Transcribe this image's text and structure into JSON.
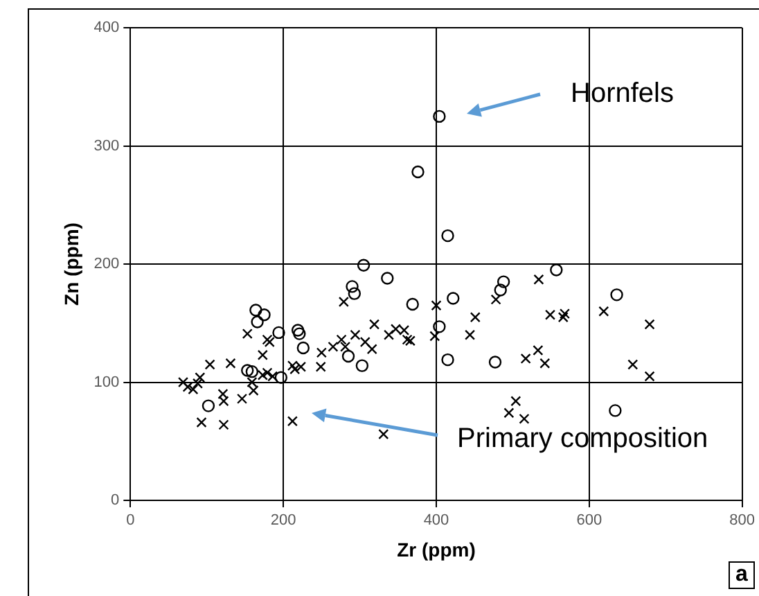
{
  "chart_data": {
    "type": "scatter",
    "xlabel": "Zr (ppm)",
    "ylabel": "Zn (ppm)",
    "xlim": [
      0,
      800
    ],
    "xticks": [
      0,
      200,
      400,
      600,
      800
    ],
    "ylim": [
      0,
      400
    ],
    "yticks": [
      0,
      100,
      200,
      300,
      400
    ],
    "grid": true,
    "legend": false,
    "series": [
      {
        "type": "scatter",
        "marker": "circle",
        "color": "#000000",
        "x": [
          404,
          376,
          415,
          305,
          336,
          290,
          293,
          369,
          422,
          488,
          484,
          557,
          404,
          285,
          303,
          415,
          477,
          636,
          634,
          164,
          175,
          166,
          194,
          219,
          221,
          226,
          153,
          159,
          197,
          102
        ],
        "values": [
          325,
          278,
          224,
          199,
          188,
          181,
          175,
          166,
          171,
          185,
          178,
          195,
          147,
          122,
          114,
          119,
          117,
          174,
          76,
          161,
          157,
          151,
          142,
          144,
          141,
          129,
          110,
          109,
          104,
          80
        ]
      },
      {
        "type": "scatter",
        "marker": "cross",
        "color": "#000000",
        "x": [
          69,
          75,
          82,
          88,
          91,
          104,
          93,
          122,
          121,
          122,
          146,
          131,
          153,
          161,
          159,
          173,
          179,
          182,
          173,
          179,
          186,
          212,
          215,
          223,
          249,
          250,
          265,
          276,
          281,
          279,
          212,
          294,
          307,
          316,
          319,
          338,
          347,
          358,
          362,
          366,
          398,
          400,
          444,
          451,
          478,
          534,
          549,
          566,
          568,
          517,
          533,
          542,
          495,
          504,
          515,
          331,
          619,
          679,
          657,
          679
        ],
        "values": [
          100,
          96,
          94,
          99,
          104,
          115,
          66,
          64,
          90,
          84,
          86,
          116,
          141,
          93,
          100,
          123,
          136,
          134,
          106,
          108,
          105,
          114,
          111,
          113,
          113,
          125,
          130,
          136,
          130,
          168,
          67,
          140,
          134,
          128,
          149,
          140,
          145,
          144,
          136,
          135,
          139,
          165,
          140,
          155,
          170,
          187,
          157,
          155,
          158,
          120,
          127,
          116,
          74,
          84,
          69,
          56,
          160,
          149,
          115,
          105
        ]
      }
    ],
    "annotations": [
      "Hornfels",
      "Primary composition",
      "a"
    ]
  }
}
